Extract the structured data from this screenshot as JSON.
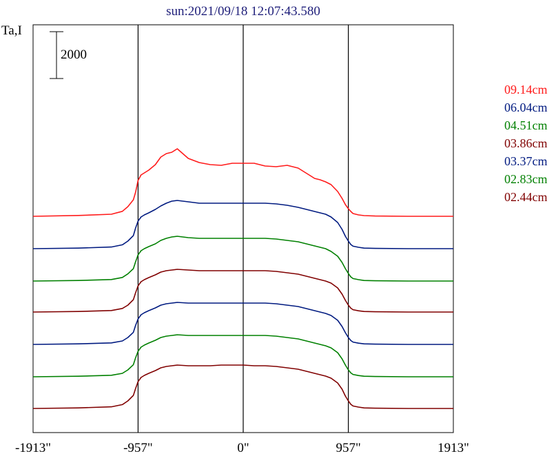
{
  "chart_data": {
    "type": "line",
    "title": "sun:2021/09/18 12:07:43.580",
    "ylabel": "Ta,I",
    "scale_bar_label": "2000",
    "scale_bar_value": 2000,
    "xlim": [
      -1913,
      1913
    ],
    "x_ticks": [
      {
        "value": -1913,
        "label": "-1913\""
      },
      {
        "value": -957,
        "label": "-957\""
      },
      {
        "value": 0,
        "label": "0\""
      },
      {
        "value": 957,
        "label": "957\""
      },
      {
        "value": 1913,
        "label": "1913\""
      }
    ],
    "vertical_reference_lines": [
      -957,
      0,
      957
    ],
    "x": [
      -1913,
      -1500,
      -1200,
      -1100,
      -1050,
      -1000,
      -980,
      -957,
      -930,
      -900,
      -860,
      -800,
      -750,
      -700,
      -650,
      -600,
      -500,
      -400,
      -300,
      -200,
      -100,
      0,
      100,
      200,
      300,
      400,
      500,
      600,
      650,
      700,
      750,
      800,
      860,
      900,
      930,
      957,
      980,
      1000,
      1050,
      1100,
      1200,
      1500,
      1913
    ],
    "series": [
      {
        "name": "09.14cm",
        "color": "#ff1a1a",
        "values": [
          0,
          60,
          150,
          360,
          700,
          1200,
          1750,
          2600,
          3000,
          3150,
          3350,
          3750,
          4300,
          4550,
          4650,
          4900,
          4200,
          3900,
          3750,
          3700,
          3850,
          3850,
          3850,
          3650,
          3600,
          3700,
          3500,
          3000,
          2750,
          2650,
          2500,
          2300,
          1800,
          1300,
          850,
          550,
          350,
          200,
          100,
          50,
          20,
          0,
          0
        ]
      },
      {
        "name": "06.04cm",
        "color": "#001a80",
        "values": [
          0,
          40,
          120,
          280,
          550,
          950,
          1500,
          2000,
          2300,
          2450,
          2600,
          2850,
          3100,
          3300,
          3450,
          3500,
          3400,
          3300,
          3300,
          3300,
          3300,
          3300,
          3300,
          3300,
          3250,
          3150,
          3000,
          2800,
          2700,
          2600,
          2500,
          2300,
          1900,
          1400,
          900,
          550,
          300,
          180,
          100,
          40,
          20,
          0,
          0
        ]
      },
      {
        "name": "04.51cm",
        "color": "#008000",
        "values": [
          0,
          40,
          110,
          260,
          520,
          900,
          1400,
          1900,
          2200,
          2350,
          2500,
          2700,
          2950,
          3100,
          3200,
          3250,
          3150,
          3100,
          3100,
          3100,
          3100,
          3100,
          3100,
          3100,
          3050,
          2950,
          2850,
          2650,
          2550,
          2450,
          2350,
          2150,
          1800,
          1350,
          900,
          550,
          300,
          180,
          100,
          40,
          20,
          0,
          0
        ]
      },
      {
        "name": "03.86cm",
        "color": "#800000",
        "values": [
          0,
          40,
          110,
          260,
          500,
          900,
          1400,
          1900,
          2200,
          2350,
          2500,
          2700,
          2900,
          3000,
          3050,
          3100,
          3050,
          3000,
          3000,
          3000,
          3000,
          3000,
          3000,
          3000,
          2950,
          2850,
          2750,
          2550,
          2450,
          2350,
          2250,
          2100,
          1750,
          1300,
          850,
          500,
          280,
          170,
          90,
          40,
          20,
          0,
          0
        ]
      },
      {
        "name": "03.37cm",
        "color": "#001a80",
        "values": [
          0,
          40,
          110,
          250,
          500,
          880,
          1380,
          1850,
          2150,
          2300,
          2450,
          2650,
          2850,
          2950,
          3000,
          3050,
          3000,
          3000,
          3000,
          3000,
          3000,
          3000,
          3000,
          3000,
          2950,
          2850,
          2750,
          2550,
          2450,
          2350,
          2250,
          2100,
          1750,
          1300,
          850,
          500,
          280,
          170,
          90,
          40,
          20,
          0,
          0
        ]
      },
      {
        "name": "02.83cm",
        "color": "#008000",
        "values": [
          0,
          40,
          110,
          250,
          500,
          880,
          1380,
          1850,
          2150,
          2300,
          2450,
          2650,
          2850,
          2950,
          3000,
          3050,
          3000,
          3000,
          3000,
          3000,
          3000,
          3000,
          3000,
          3000,
          2950,
          2850,
          2750,
          2550,
          2450,
          2350,
          2250,
          2100,
          1750,
          1300,
          850,
          500,
          280,
          170,
          90,
          40,
          20,
          0,
          0
        ]
      },
      {
        "name": "02.44cm",
        "color": "#800000",
        "values": [
          0,
          40,
          120,
          280,
          550,
          950,
          1450,
          1950,
          2250,
          2400,
          2550,
          2750,
          2950,
          3050,
          3100,
          3150,
          3100,
          3100,
          3100,
          3150,
          3150,
          3150,
          3100,
          3100,
          3050,
          2950,
          2850,
          2650,
          2550,
          2450,
          2350,
          2200,
          1850,
          1400,
          900,
          550,
          300,
          180,
          100,
          40,
          20,
          0,
          0
        ]
      }
    ]
  }
}
